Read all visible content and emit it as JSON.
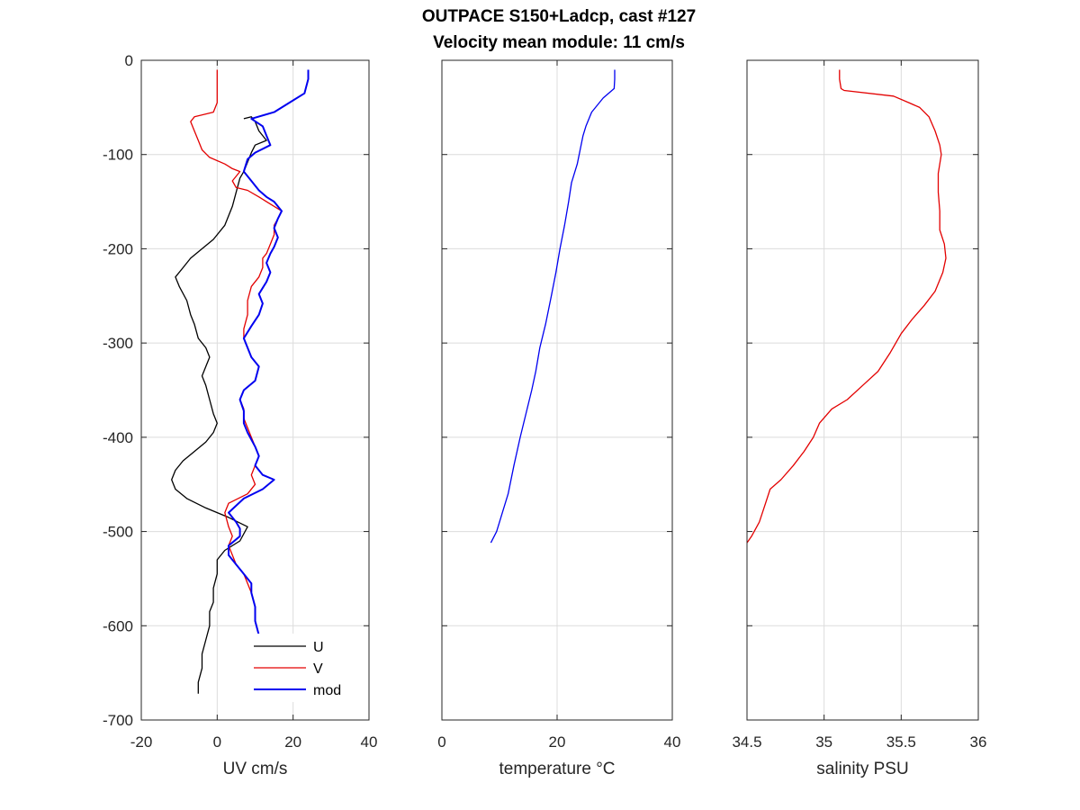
{
  "title_line1": "OUTPACE S150+Ladcp, cast #127",
  "title_line2": "Velocity mean module:  11 cm/s",
  "chart_data": [
    {
      "type": "line",
      "xlabel": "UV cm/s",
      "xlim": [
        -20,
        40
      ],
      "ylim": [
        -700,
        0
      ],
      "xticks": [
        -20,
        0,
        20,
        40
      ],
      "xtick_labels": [
        "-20",
        "0",
        "20",
        "40"
      ],
      "yticks": [
        0,
        -100,
        -200,
        -300,
        -400,
        -500,
        -600,
        -700
      ],
      "ytick_labels": [
        "0",
        "-100",
        "-200",
        "-300",
        "-400",
        "-500",
        "-600",
        "-700"
      ],
      "grid": true,
      "legend": {
        "position": "bottom-right",
        "entries": [
          "U",
          "V",
          "mod"
        ]
      },
      "series": [
        {
          "name": "U",
          "color": "#000000",
          "points": [
            [
              7,
              -62
            ],
            [
              9,
              -60
            ],
            [
              10,
              -65
            ],
            [
              11,
              -75
            ],
            [
              13,
              -85
            ],
            [
              10,
              -90
            ],
            [
              9,
              -98
            ],
            [
              8,
              -108
            ],
            [
              7,
              -118
            ],
            [
              6,
              -125
            ],
            [
              5,
              -140
            ],
            [
              4,
              -155
            ],
            [
              3,
              -165
            ],
            [
              2,
              -175
            ],
            [
              -1,
              -190
            ],
            [
              -4,
              -200
            ],
            [
              -7,
              -210
            ],
            [
              -9,
              -220
            ],
            [
              -11,
              -230
            ],
            [
              -10,
              -240
            ],
            [
              -8,
              -255
            ],
            [
              -7,
              -270
            ],
            [
              -6,
              -280
            ],
            [
              -5,
              -295
            ],
            [
              -3,
              -305
            ],
            [
              -2,
              -315
            ],
            [
              -3,
              -325
            ],
            [
              -4,
              -335
            ],
            [
              -3,
              -345
            ],
            [
              -2,
              -360
            ],
            [
              -1,
              -375
            ],
            [
              0,
              -385
            ],
            [
              -1,
              -395
            ],
            [
              -3,
              -405
            ],
            [
              -6,
              -415
            ],
            [
              -9,
              -425
            ],
            [
              -11,
              -435
            ],
            [
              -12,
              -445
            ],
            [
              -11,
              -455
            ],
            [
              -8,
              -465
            ],
            [
              -3,
              -475
            ],
            [
              3,
              -485
            ],
            [
              8,
              -495
            ],
            [
              6,
              -510
            ],
            [
              2,
              -520
            ],
            [
              0,
              -530
            ],
            [
              0,
              -545
            ],
            [
              -1,
              -560
            ],
            [
              -1,
              -575
            ],
            [
              -2,
              -585
            ],
            [
              -2,
              -600
            ],
            [
              -3,
              -615
            ],
            [
              -4,
              -630
            ],
            [
              -4,
              -645
            ],
            [
              -5,
              -660
            ],
            [
              -5,
              -672
            ]
          ]
        },
        {
          "name": "V",
          "color": "#e30000",
          "points": [
            [
              0,
              -10
            ],
            [
              0,
              -20
            ],
            [
              0,
              -35
            ],
            [
              0,
              -45
            ],
            [
              -1,
              -55
            ],
            [
              -6,
              -60
            ],
            [
              -7,
              -65
            ],
            [
              -6,
              -75
            ],
            [
              -5,
              -85
            ],
            [
              -4,
              -95
            ],
            [
              -2,
              -103
            ],
            [
              2,
              -110
            ],
            [
              4,
              -115
            ],
            [
              6,
              -118
            ],
            [
              4,
              -128
            ],
            [
              5,
              -135
            ],
            [
              8,
              -138
            ],
            [
              11,
              -145
            ],
            [
              13,
              -150
            ],
            [
              15,
              -155
            ],
            [
              17,
              -160
            ],
            [
              16,
              -168
            ],
            [
              15,
              -175
            ],
            [
              15,
              -185
            ],
            [
              14,
              -195
            ],
            [
              13,
              -205
            ],
            [
              12,
              -210
            ],
            [
              12,
              -220
            ],
            [
              11,
              -230
            ],
            [
              9,
              -240
            ],
            [
              8,
              -255
            ],
            [
              8,
              -270
            ],
            [
              7,
              -285
            ],
            [
              7,
              -295
            ],
            [
              8,
              -305
            ],
            [
              9,
              -315
            ],
            [
              11,
              -325
            ],
            [
              10,
              -340
            ],
            [
              7,
              -350
            ],
            [
              6,
              -360
            ],
            [
              7,
              -370
            ],
            [
              7,
              -380
            ],
            [
              8,
              -390
            ],
            [
              9,
              -400
            ],
            [
              10,
              -410
            ],
            [
              11,
              -420
            ],
            [
              10,
              -430
            ],
            [
              9,
              -440
            ],
            [
              10,
              -450
            ],
            [
              8,
              -460
            ],
            [
              3,
              -470
            ],
            [
              2,
              -480
            ],
            [
              3,
              -495
            ],
            [
              4,
              -505
            ],
            [
              3,
              -515
            ],
            [
              4,
              -525
            ],
            [
              5,
              -535
            ],
            [
              7,
              -545
            ],
            [
              8,
              -555
            ],
            [
              9,
              -565
            ],
            [
              10,
              -580
            ],
            [
              10,
              -595
            ],
            [
              11,
              -610
            ],
            [
              10,
              -620
            ],
            [
              10,
              -630
            ],
            [
              9,
              -645
            ],
            [
              8,
              -655
            ],
            [
              8,
              -672
            ]
          ]
        },
        {
          "name": "mod",
          "color": "#0000f0",
          "points": [
            [
              24,
              -10
            ],
            [
              24,
              -20
            ],
            [
              23,
              -35
            ],
            [
              19,
              -45
            ],
            [
              15,
              -55
            ],
            [
              9,
              -62
            ],
            [
              12,
              -70
            ],
            [
              13,
              -80
            ],
            [
              14,
              -90
            ],
            [
              10,
              -98
            ],
            [
              8,
              -105
            ],
            [
              7,
              -118
            ],
            [
              9,
              -128
            ],
            [
              11,
              -138
            ],
            [
              13,
              -145
            ],
            [
              15,
              -150
            ],
            [
              17,
              -160
            ],
            [
              16,
              -168
            ],
            [
              15,
              -178
            ],
            [
              16,
              -188
            ],
            [
              15,
              -198
            ],
            [
              14,
              -205
            ],
            [
              13,
              -215
            ],
            [
              14,
              -225
            ],
            [
              13,
              -235
            ],
            [
              11,
              -248
            ],
            [
              12,
              -258
            ],
            [
              11,
              -270
            ],
            [
              9,
              -282
            ],
            [
              7,
              -295
            ],
            [
              8,
              -305
            ],
            [
              9,
              -315
            ],
            [
              11,
              -325
            ],
            [
              10,
              -340
            ],
            [
              7,
              -350
            ],
            [
              6,
              -360
            ],
            [
              7,
              -372
            ],
            [
              7,
              -385
            ],
            [
              8,
              -395
            ],
            [
              10,
              -410
            ],
            [
              11,
              -420
            ],
            [
              10,
              -430
            ],
            [
              12,
              -440
            ],
            [
              15,
              -445
            ],
            [
              12,
              -455
            ],
            [
              7,
              -465
            ],
            [
              3,
              -480
            ],
            [
              5,
              -490
            ],
            [
              6,
              -497
            ],
            [
              6,
              -505
            ],
            [
              3,
              -515
            ],
            [
              3,
              -525
            ],
            [
              5,
              -535
            ],
            [
              7,
              -545
            ],
            [
              9,
              -555
            ],
            [
              9,
              -565
            ],
            [
              10,
              -580
            ],
            [
              10,
              -595
            ],
            [
              11,
              -610
            ],
            [
              10,
              -625
            ],
            [
              10,
              -635
            ],
            [
              9,
              -645
            ],
            [
              9,
              -660
            ],
            [
              9,
              -672
            ]
          ]
        }
      ]
    },
    {
      "type": "line",
      "xlabel": "temperature °C",
      "xlim": [
        0,
        40
      ],
      "ylim": [
        -700,
        0
      ],
      "xticks": [
        0,
        20,
        40
      ],
      "xtick_labels": [
        "0",
        "20",
        "40"
      ],
      "yticks": [
        0,
        -100,
        -200,
        -300,
        -400,
        -500,
        -600,
        -700
      ],
      "ytick_labels": [],
      "grid": true,
      "series": [
        {
          "color": "#0000f0",
          "points": [
            [
              30,
              -10
            ],
            [
              30,
              -20
            ],
            [
              29.9,
              -30
            ],
            [
              28,
              -40
            ],
            [
              26,
              -55
            ],
            [
              25,
              -70
            ],
            [
              24.5,
              -80
            ],
            [
              24,
              -95
            ],
            [
              23.5,
              -110
            ],
            [
              22.5,
              -130
            ],
            [
              22,
              -150
            ],
            [
              21.3,
              -175
            ],
            [
              20.5,
              -200
            ],
            [
              19.8,
              -225
            ],
            [
              19,
              -250
            ],
            [
              18,
              -280
            ],
            [
              17,
              -305
            ],
            [
              16.3,
              -330
            ],
            [
              15.6,
              -350
            ],
            [
              14.8,
              -370
            ],
            [
              13.6,
              -400
            ],
            [
              12.5,
              -430
            ],
            [
              11.5,
              -460
            ],
            [
              10.5,
              -480
            ],
            [
              9.5,
              -500
            ],
            [
              8.5,
              -512
            ]
          ]
        }
      ]
    },
    {
      "type": "line",
      "xlabel": "salinity PSU",
      "xlim": [
        34.5,
        36
      ],
      "ylim": [
        -700,
        0
      ],
      "xticks": [
        34.5,
        35,
        35.5,
        36
      ],
      "xtick_labels": [
        "34.5",
        "35",
        "35.5",
        "36"
      ],
      "yticks": [
        0,
        -100,
        -200,
        -300,
        -400,
        -500,
        -600,
        -700
      ],
      "ytick_labels": [],
      "grid": true,
      "series": [
        {
          "color": "#e30000",
          "points": [
            [
              35.1,
              -10
            ],
            [
              35.1,
              -20
            ],
            [
              35.11,
              -30
            ],
            [
              35.13,
              -32
            ],
            [
              35.45,
              -38
            ],
            [
              35.55,
              -45
            ],
            [
              35.62,
              -50
            ],
            [
              35.68,
              -60
            ],
            [
              35.72,
              -75
            ],
            [
              35.75,
              -90
            ],
            [
              35.76,
              -100
            ],
            [
              35.74,
              -120
            ],
            [
              35.74,
              -140
            ],
            [
              35.75,
              -160
            ],
            [
              35.75,
              -180
            ],
            [
              35.78,
              -195
            ],
            [
              35.79,
              -210
            ],
            [
              35.77,
              -225
            ],
            [
              35.72,
              -245
            ],
            [
              35.65,
              -260
            ],
            [
              35.57,
              -275
            ],
            [
              35.5,
              -290
            ],
            [
              35.43,
              -310
            ],
            [
              35.35,
              -330
            ],
            [
              35.25,
              -345
            ],
            [
              35.15,
              -360
            ],
            [
              35.05,
              -370
            ],
            [
              34.97,
              -385
            ],
            [
              34.93,
              -400
            ],
            [
              34.87,
              -415
            ],
            [
              34.8,
              -430
            ],
            [
              34.72,
              -445
            ],
            [
              34.65,
              -455
            ],
            [
              34.62,
              -470
            ],
            [
              34.58,
              -490
            ],
            [
              34.53,
              -505
            ],
            [
              34.5,
              -512
            ]
          ]
        }
      ]
    }
  ]
}
